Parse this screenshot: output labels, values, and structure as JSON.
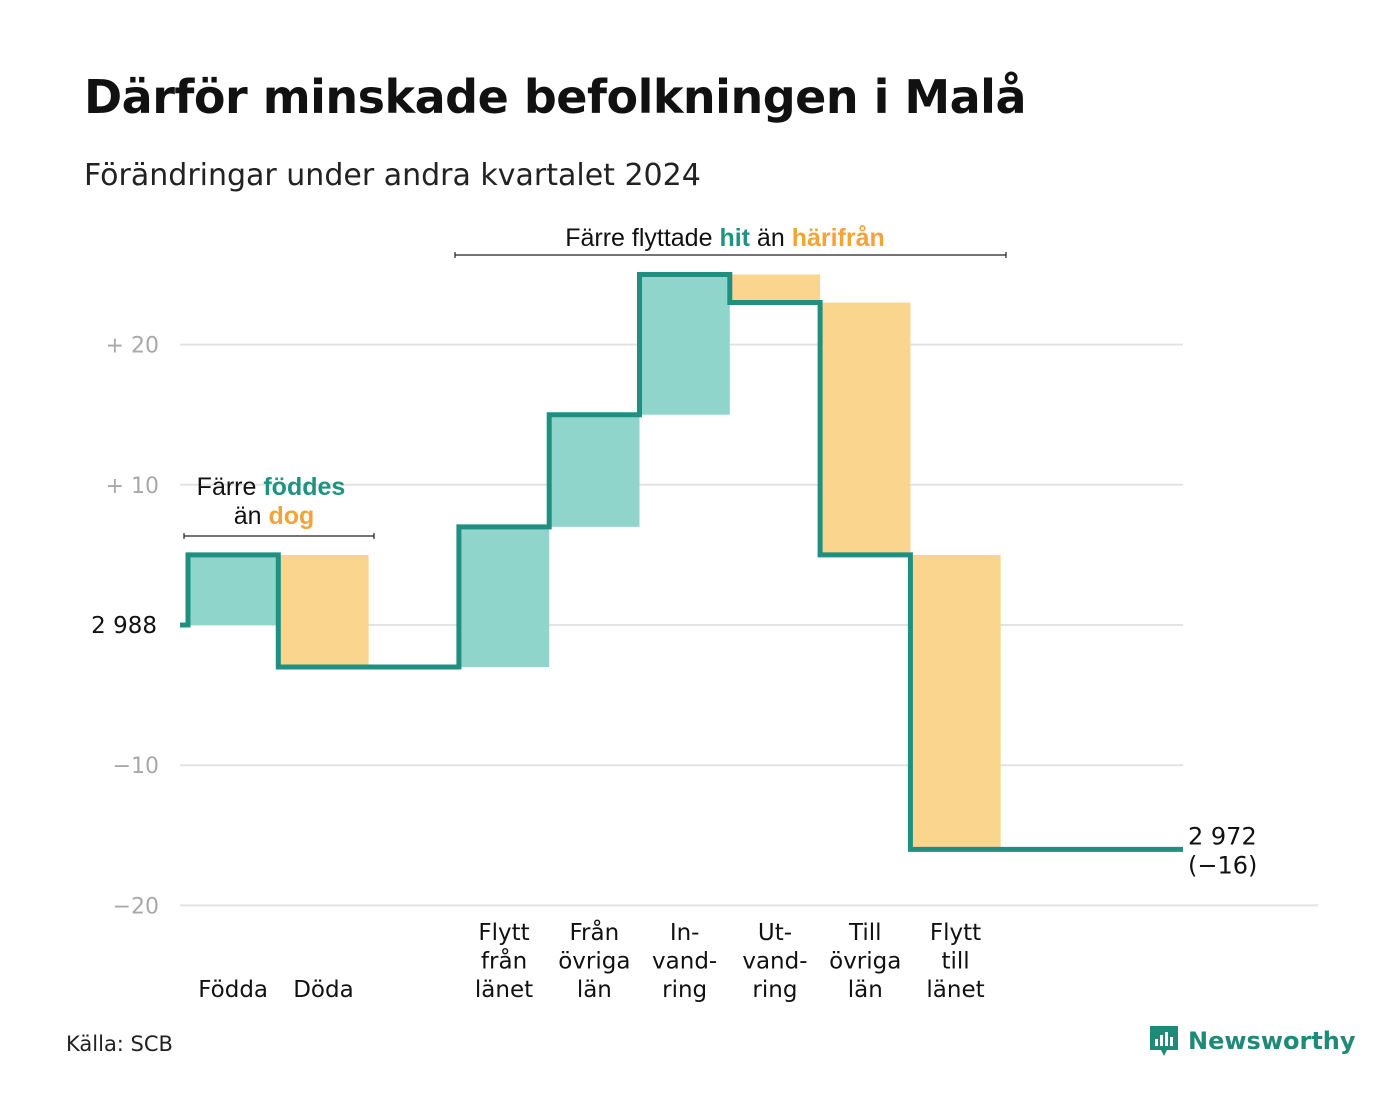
{
  "title": "Därför minskade befolkningen i Malå",
  "subtitle": "Förändringar under andra kvartalet 2024",
  "source": "Källa: SCB",
  "brand": "Newsworthy",
  "colors": {
    "in_fill": "#8fd5cc",
    "out_fill": "#f9d58e",
    "line": "#1f8f7f",
    "in_text": "#1f9282",
    "out_text": "#f0a43a",
    "grid": "#e3e3e3"
  },
  "annotations": {
    "births": {
      "line1_prefix": "Färre",
      "line1_highlight": "föddes",
      "line2_prefix": "än",
      "line2_highlight": "dog"
    },
    "migration": {
      "prefix": "Färre flyttade",
      "highlight1": "hit",
      "middle": "än",
      "highlight2": "härifrån"
    }
  },
  "chart_data": {
    "type": "waterfall",
    "title": "Därför minskade befolkningen i Malå",
    "subtitle": "Förändringar under andra kvartalet 2024",
    "start_value": 2988,
    "start_label": "2 988",
    "end_value": 2972,
    "end_label": "2 972",
    "end_change_label": "(−16)",
    "ylim": [
      -20,
      25
    ],
    "yticks": [
      {
        "value": 20,
        "label": "+  20"
      },
      {
        "value": 10,
        "label": "+  10"
      },
      {
        "value": 0,
        "label": "2  988"
      },
      {
        "value": -10,
        "label": "−10"
      },
      {
        "value": -20,
        "label": "−20"
      }
    ],
    "steps": [
      {
        "label": [
          "Födda"
        ],
        "value": 5,
        "kind": "in"
      },
      {
        "label": [
          "Döda"
        ],
        "value": -8,
        "kind": "out"
      },
      {
        "label": [],
        "value": 0,
        "kind": "gap"
      },
      {
        "label": [
          "Flytt",
          "från",
          "länet"
        ],
        "value": 10,
        "kind": "in"
      },
      {
        "label": [
          "Från",
          "övriga",
          "län"
        ],
        "value": 8,
        "kind": "in"
      },
      {
        "label": [
          "In-",
          "vand-",
          "ring"
        ],
        "value": 10,
        "kind": "in"
      },
      {
        "label": [
          "Ut-",
          "vand-",
          "ring"
        ],
        "value": -2,
        "kind": "out"
      },
      {
        "label": [
          "Till",
          "övriga",
          "län"
        ],
        "value": -18,
        "kind": "out"
      },
      {
        "label": [
          "Flytt",
          "till",
          "länet"
        ],
        "value": -21,
        "kind": "out"
      }
    ],
    "grid": true,
    "legend": "none"
  }
}
